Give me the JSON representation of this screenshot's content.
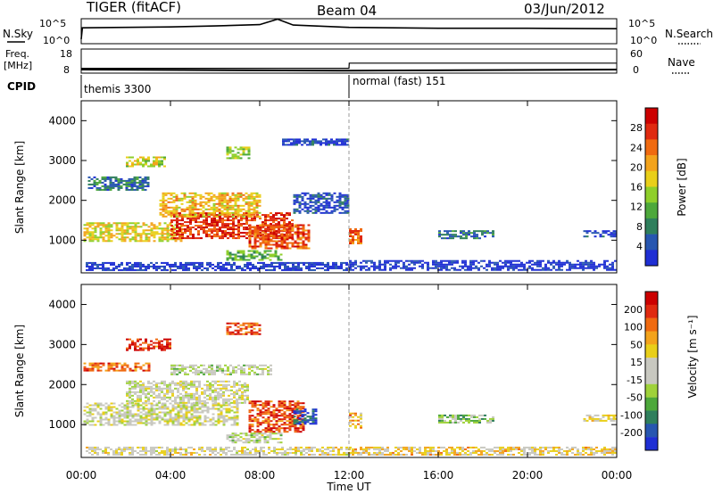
{
  "header": {
    "title": "TIGER (fitACF)",
    "beam": "Beam 04",
    "date": "03/Jun/2012"
  },
  "strip_labels": {
    "nsky": "N.Sky",
    "nsearch": "N.Search",
    "freq": "Freq.",
    "freq_unit": "[MHz]",
    "nave": "Nave",
    "cpid": "CPID"
  },
  "cpid_segments": [
    {
      "label": "themis 3300",
      "start_hour": 0,
      "end_hour": 12
    },
    {
      "label": "normal (fast) 151",
      "start_hour": 12,
      "end_hour": 24
    }
  ],
  "chart_data": [
    {
      "type": "line",
      "panel": "noise",
      "left_ticks": [
        "10^5",
        "10^0"
      ],
      "right_ticks": [
        "10^5",
        "10^0"
      ],
      "series": [
        {
          "name": "N.Sky",
          "values": [
            {
              "x": 0,
              "y": 1.0
            },
            {
              "x": 0.05,
              "y": 3.5
            },
            {
              "x": 2,
              "y": 3.6
            },
            {
              "x": 4,
              "y": 3.7
            },
            {
              "x": 6,
              "y": 3.9
            },
            {
              "x": 8,
              "y": 4.2
            },
            {
              "x": 8.8,
              "y": 5.4
            },
            {
              "x": 9.5,
              "y": 4.1
            },
            {
              "x": 12,
              "y": 3.6
            },
            {
              "x": 16,
              "y": 3.4
            },
            {
              "x": 20,
              "y": 3.4
            },
            {
              "x": 24,
              "y": 3.3
            }
          ]
        },
        {
          "name": "N.Search",
          "values": []
        }
      ],
      "ylim": [
        0,
        5.5
      ]
    },
    {
      "type": "line",
      "panel": "freq-nave",
      "left_ticks": [
        "18",
        "8"
      ],
      "right_ticks": [
        "60",
        "0"
      ],
      "series": [
        {
          "name": "Freq.",
          "values": [
            {
              "x": 0,
              "y": 9.5
            },
            {
              "x": 12,
              "y": 9.0
            },
            {
              "x": 24,
              "y": 9.5
            }
          ]
        },
        {
          "name": "Nave",
          "values": [
            {
              "x": 0,
              "y": 12
            },
            {
              "x": 12,
              "y": 12
            },
            {
              "x": 12.01,
              "y": 25
            },
            {
              "x": 24,
              "y": 25
            }
          ]
        }
      ],
      "ylim": [
        8,
        18
      ]
    },
    {
      "type": "heatmap",
      "panel": "power",
      "xlabel": "",
      "ylabel": "Slant Range [km]",
      "xlim": [
        0,
        24
      ],
      "ylim": [
        180,
        4500
      ],
      "y_ticks": [
        1000,
        2000,
        3000,
        4000
      ],
      "colorbar": {
        "label": "Power [dB]",
        "ticks": [
          "4",
          "8",
          "12",
          "16",
          "20",
          "24",
          "28"
        ],
        "colors": [
          "#1f2fd4",
          "#2756b0",
          "#2f7f5c",
          "#4da83b",
          "#8fcf2b",
          "#e9cf1a",
          "#f3a31c",
          "#f06a10",
          "#e02a10",
          "#cc0000"
        ]
      },
      "blobs": [
        {
          "t0": 0.1,
          "t1": 4.5,
          "r0": 1000,
          "r1": 1450,
          "level": 0.55
        },
        {
          "t0": 4.0,
          "t1": 9.5,
          "r0": 1050,
          "r1": 1700,
          "level": 0.85
        },
        {
          "t0": 3.5,
          "t1": 8.0,
          "r0": 1600,
          "r1": 2200,
          "level": 0.6
        },
        {
          "t0": 7.5,
          "t1": 10.2,
          "r0": 800,
          "r1": 1400,
          "level": 0.8
        },
        {
          "t0": 0.3,
          "t1": 3.0,
          "r0": 2250,
          "r1": 2600,
          "level": 0.2
        },
        {
          "t0": 2.0,
          "t1": 3.8,
          "r0": 2850,
          "r1": 3100,
          "level": 0.5
        },
        {
          "t0": 6.5,
          "t1": 7.5,
          "r0": 3050,
          "r1": 3350,
          "level": 0.45
        },
        {
          "t0": 9.5,
          "t1": 12.0,
          "r0": 1700,
          "r1": 2200,
          "level": 0.12
        },
        {
          "t0": 9.0,
          "t1": 12.0,
          "r0": 3400,
          "r1": 3550,
          "level": 0.1
        },
        {
          "t0": 6.5,
          "t1": 9.0,
          "r0": 500,
          "r1": 750,
          "level": 0.35
        },
        {
          "t0": 0.2,
          "t1": 12.0,
          "r0": 250,
          "r1": 450,
          "level": 0.05
        },
        {
          "t0": 12.0,
          "t1": 24.0,
          "r0": 250,
          "r1": 500,
          "level": 0.04
        },
        {
          "t0": 12.0,
          "t1": 12.6,
          "r0": 900,
          "r1": 1300,
          "level": 0.75
        },
        {
          "t0": 16.0,
          "t1": 18.5,
          "r0": 1050,
          "r1": 1250,
          "level": 0.2
        },
        {
          "t0": 22.5,
          "t1": 24.0,
          "r0": 1100,
          "r1": 1250,
          "level": 0.1
        }
      ]
    },
    {
      "type": "heatmap",
      "panel": "velocity",
      "xlabel": "Time UT",
      "ylabel": "Slant Range [km]",
      "xlim": [
        0,
        24
      ],
      "ylim": [
        180,
        4500
      ],
      "x_ticks": [
        "00:00",
        "04:00",
        "08:00",
        "12:00",
        "16:00",
        "20:00",
        "00:00"
      ],
      "y_ticks": [
        1000,
        2000,
        3000,
        4000
      ],
      "colorbar": {
        "label": "Velocity [m s⁻¹]",
        "ticks": [
          "200",
          "100",
          "50",
          "15",
          "-15",
          "-50",
          "-100",
          "-200"
        ],
        "colors": [
          "#1f2fd4",
          "#2756b0",
          "#2f7f5c",
          "#4da83b",
          "#9fd23a",
          "#c8c8c0",
          "#c8c8c0",
          "#e9cf1a",
          "#f3a31c",
          "#f06a10",
          "#e02a10",
          "#cc0000"
        ]
      },
      "blobs": [
        {
          "t0": 0.1,
          "t1": 7.0,
          "r0": 1000,
          "r1": 1550,
          "level": 0.5
        },
        {
          "t0": 2.0,
          "t1": 7.5,
          "r0": 1550,
          "r1": 2100,
          "level": 0.5
        },
        {
          "t0": 4.0,
          "t1": 8.5,
          "r0": 2250,
          "r1": 2500,
          "level": 0.45
        },
        {
          "t0": 7.5,
          "t1": 10.0,
          "r0": 800,
          "r1": 1600,
          "level": 0.85
        },
        {
          "t0": 9.5,
          "t1": 10.5,
          "r0": 1000,
          "r1": 1400,
          "level": 0.1
        },
        {
          "t0": 2.0,
          "t1": 4.0,
          "r0": 2850,
          "r1": 3150,
          "level": 0.88
        },
        {
          "t0": 6.5,
          "t1": 8.0,
          "r0": 3250,
          "r1": 3550,
          "level": 0.85
        },
        {
          "t0": 0.1,
          "t1": 3.0,
          "r0": 2350,
          "r1": 2550,
          "level": 0.8
        },
        {
          "t0": 6.5,
          "t1": 9.0,
          "r0": 550,
          "r1": 800,
          "level": 0.45
        },
        {
          "t0": 0.2,
          "t1": 12.0,
          "r0": 250,
          "r1": 450,
          "level": 0.55
        },
        {
          "t0": 12.0,
          "t1": 24.0,
          "r0": 250,
          "r1": 450,
          "level": 0.62
        },
        {
          "t0": 12.0,
          "t1": 12.6,
          "r0": 900,
          "r1": 1300,
          "level": 0.7
        },
        {
          "t0": 16.0,
          "t1": 18.5,
          "r0": 1050,
          "r1": 1250,
          "level": 0.35
        },
        {
          "t0": 22.5,
          "t1": 24.0,
          "r0": 1100,
          "r1": 1250,
          "level": 0.55
        }
      ]
    }
  ]
}
